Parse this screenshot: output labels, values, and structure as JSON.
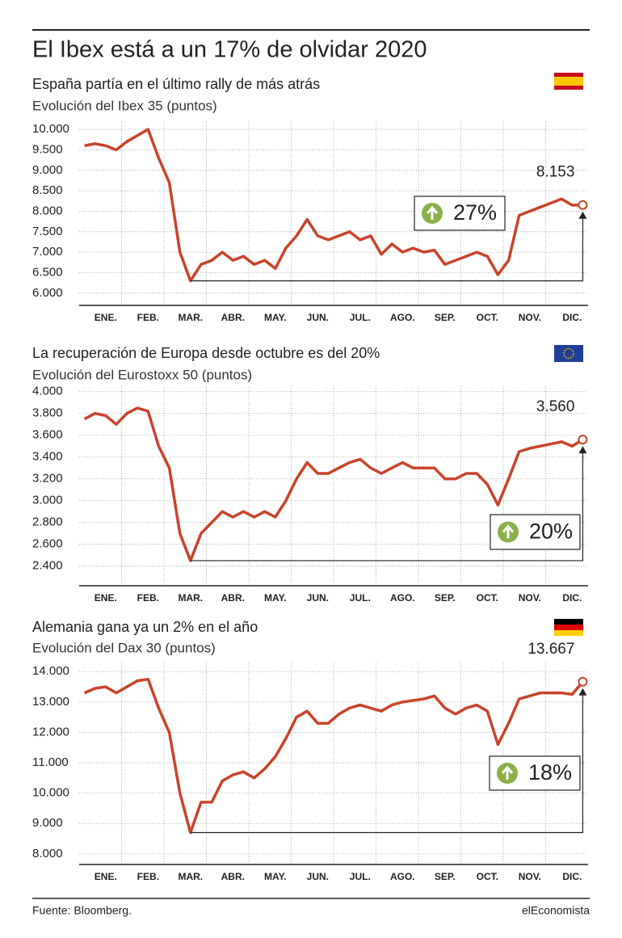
{
  "title": "El Ibex está a un 17% de olvidar 2020",
  "source": "Fuente: Bloomberg.",
  "brand": "elEconomista",
  "chart_data": [
    {
      "type": "line",
      "title": "España partía en el último rally de más atrás",
      "subtitle": "Evolución del Ibex 35 (puntos)",
      "categories": [
        null,
        null,
        "ENE.",
        null,
        null,
        null,
        "FEB.",
        null,
        null,
        null,
        "MAR.",
        null,
        null,
        null,
        "ABR.",
        null,
        null,
        null,
        "MAY.",
        null,
        null,
        null,
        "JUN.",
        null,
        null,
        null,
        "JUL.",
        null,
        null,
        null,
        "AGO.",
        null,
        null,
        null,
        "SEP.",
        null,
        null,
        null,
        "OCT.",
        null,
        null,
        null,
        "NOV.",
        null,
        null,
        null,
        "DIC.",
        null
      ],
      "series": [
        {
          "name": "Ibex 35",
          "color": "#c9432a",
          "values": [
            9600,
            9650,
            9600,
            9500,
            9700,
            9850,
            10000,
            9300,
            8700,
            7000,
            6300,
            6700,
            6800,
            7000,
            6800,
            6900,
            6700,
            6800,
            6600,
            7100,
            7400,
            7800,
            7400,
            7300,
            7400,
            7500,
            7300,
            7400,
            6950,
            7200,
            7000,
            7100,
            7000,
            7050,
            6700,
            6800,
            6900,
            7000,
            6900,
            6450,
            6800,
            7900,
            8000,
            8100,
            8200,
            8300,
            8150,
            8153
          ]
        }
      ],
      "end_label": "8.153",
      "change_label": "27%",
      "ylim": [
        5700,
        10200
      ],
      "yticks": [
        {
          "value": 6000,
          "label": "6.000"
        },
        {
          "value": 6500,
          "label": "6.500"
        },
        {
          "value": 7000,
          "label": "7.000"
        },
        {
          "value": 7500,
          "label": "7.500"
        },
        {
          "value": 8000,
          "label": "8.000"
        },
        {
          "value": 8500,
          "label": "8.500"
        },
        {
          "value": 9000,
          "label": "9.000"
        },
        {
          "value": 9500,
          "label": "9.500"
        },
        {
          "value": 10000,
          "label": "10.000"
        }
      ],
      "grid": true
    },
    {
      "type": "line",
      "title": "La recuperación de Europa desde octubre es del 20%",
      "subtitle": "Evolución del Eurostoxx 50 (puntos)",
      "categories": [
        null,
        null,
        "ENE.",
        null,
        null,
        null,
        "FEB.",
        null,
        null,
        null,
        "MAR.",
        null,
        null,
        null,
        "ABR.",
        null,
        null,
        null,
        "MAY.",
        null,
        null,
        null,
        "JUN.",
        null,
        null,
        null,
        "JUL.",
        null,
        null,
        null,
        "AGO.",
        null,
        null,
        null,
        "SEP.",
        null,
        null,
        null,
        "OCT.",
        null,
        null,
        null,
        "NOV.",
        null,
        null,
        null,
        "DIC.",
        null
      ],
      "series": [
        {
          "name": "Eurostoxx 50",
          "color": "#c9432a",
          "values": [
            3750,
            3800,
            3780,
            3700,
            3800,
            3850,
            3820,
            3500,
            3300,
            2700,
            2450,
            2700,
            2800,
            2900,
            2850,
            2900,
            2850,
            2900,
            2850,
            3000,
            3200,
            3350,
            3250,
            3250,
            3300,
            3350,
            3380,
            3300,
            3250,
            3300,
            3350,
            3300,
            3300,
            3300,
            3200,
            3200,
            3250,
            3250,
            3150,
            2960,
            3200,
            3450,
            3480,
            3500,
            3520,
            3540,
            3500,
            3560
          ]
        }
      ],
      "end_label": "3.560",
      "change_label": "20%",
      "ylim": [
        2220,
        4050
      ],
      "yticks": [
        {
          "value": 2400,
          "label": "2.400"
        },
        {
          "value": 2600,
          "label": "2.600"
        },
        {
          "value": 2800,
          "label": "2.800"
        },
        {
          "value": 3000,
          "label": "3.000"
        },
        {
          "value": 3200,
          "label": "3.200"
        },
        {
          "value": 3400,
          "label": "3.400"
        },
        {
          "value": 3600,
          "label": "3.600"
        },
        {
          "value": 3800,
          "label": "3.800"
        },
        {
          "value": 4000,
          "label": "4.000"
        }
      ],
      "grid": true
    },
    {
      "type": "line",
      "title": "Alemania gana ya un 2% en el año",
      "subtitle": "Evolución del Dax 30 (puntos)",
      "categories": [
        null,
        null,
        "ENE.",
        null,
        null,
        null,
        "FEB.",
        null,
        null,
        null,
        "MAR.",
        null,
        null,
        null,
        "ABR.",
        null,
        null,
        null,
        "MAY.",
        null,
        null,
        null,
        "JUN.",
        null,
        null,
        null,
        "JUL.",
        null,
        null,
        null,
        "AGO.",
        null,
        null,
        null,
        "SEP.",
        null,
        null,
        null,
        "OCT.",
        null,
        null,
        null,
        "NOV.",
        null,
        null,
        null,
        "DIC.",
        null
      ],
      "series": [
        {
          "name": "Dax 30",
          "color": "#c9432a",
          "values": [
            13300,
            13450,
            13500,
            13300,
            13500,
            13700,
            13750,
            12800,
            12000,
            10000,
            8700,
            9700,
            9700,
            10400,
            10600,
            10700,
            10500,
            10800,
            11200,
            11800,
            12500,
            12700,
            12300,
            12300,
            12600,
            12800,
            12900,
            12800,
            12700,
            12900,
            13000,
            13050,
            13100,
            13200,
            12800,
            12600,
            12800,
            12900,
            12700,
            11600,
            12300,
            13100,
            13200,
            13300,
            13300,
            13300,
            13250,
            13667
          ]
        }
      ],
      "end_label": "13.667",
      "change_label": "18%",
      "ylim": [
        7650,
        14300
      ],
      "yticks": [
        {
          "value": 8000,
          "label": "8.000"
        },
        {
          "value": 9000,
          "label": "9.000"
        },
        {
          "value": 10000,
          "label": "10.000"
        },
        {
          "value": 11000,
          "label": "11.000"
        },
        {
          "value": 12000,
          "label": "12.000"
        },
        {
          "value": 13000,
          "label": "13.000"
        },
        {
          "value": 14000,
          "label": "14.000"
        }
      ],
      "grid": true
    }
  ]
}
